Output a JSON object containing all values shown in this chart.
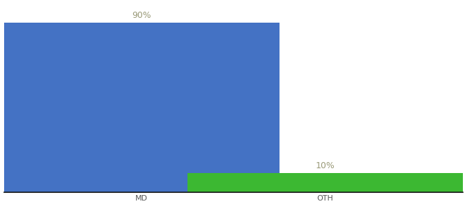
{
  "categories": [
    "MD",
    "OTH"
  ],
  "values": [
    90,
    10
  ],
  "bar_colors": [
    "#4472c4",
    "#3cb832"
  ],
  "label_format": [
    "90%",
    "10%"
  ],
  "background_color": "#ffffff",
  "ylim": [
    0,
    100
  ],
  "bar_width": 0.6,
  "bar_positions": [
    0.3,
    0.7
  ],
  "xlim": [
    0.0,
    1.0
  ],
  "label_fontsize": 9,
  "tick_fontsize": 8,
  "label_color": "#999977"
}
